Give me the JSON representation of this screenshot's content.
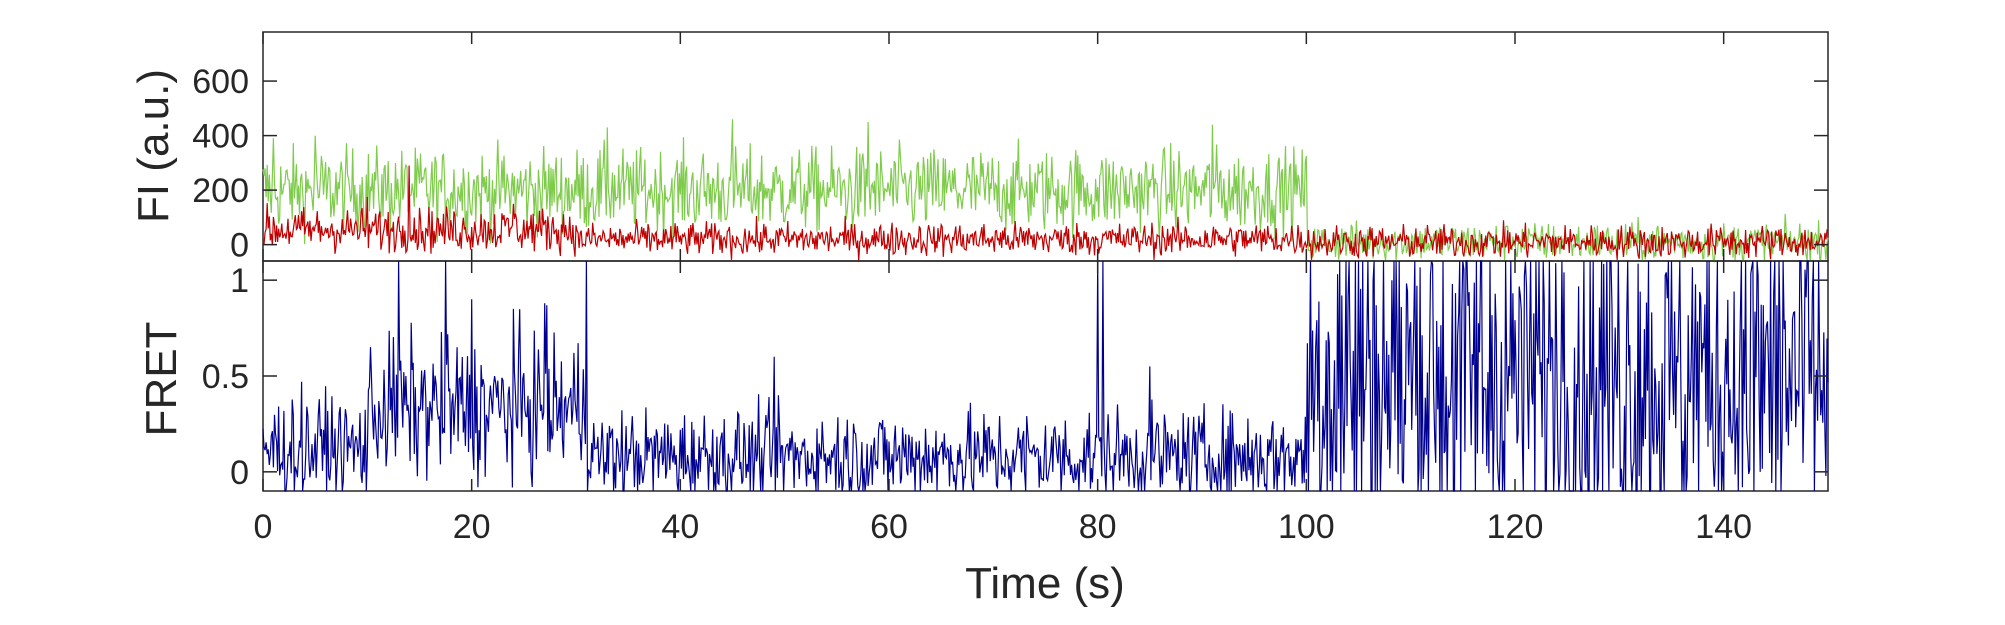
{
  "chart_data": [
    {
      "type": "line",
      "ylabel": "FI (a.u.)",
      "xlim": [
        0,
        150
      ],
      "ylim": [
        -60,
        780
      ],
      "yticks": [
        0,
        200,
        400,
        600
      ],
      "ytick_labels": [
        "0",
        "200",
        "400",
        "600"
      ],
      "grid": false,
      "series": [
        {
          "color": "#7fcc4c",
          "segments": [
            {
              "x": [
                0,
                100
              ],
              "mean": 200,
              "noise": 75
            },
            {
              "x": [
                100,
                150
              ],
              "mean": 10,
              "noise": 35
            }
          ],
          "peaks": [
            [
              1,
              390
            ],
            [
              5,
              400
            ],
            [
              33,
              430
            ],
            [
              45,
              460
            ],
            [
              58,
              450
            ],
            [
              91,
              440
            ]
          ]
        },
        {
          "color": "#c00000",
          "segments": [
            {
              "x": [
                0,
                30
              ],
              "mean": 55,
              "noise": 40
            },
            {
              "x": [
                30,
                100
              ],
              "mean": 20,
              "noise": 30
            },
            {
              "x": [
                100,
                150
              ],
              "mean": 10,
              "noise": 30
            }
          ],
          "peaks": [
            [
              14,
              290
            ],
            [
              10,
              175
            ],
            [
              24,
              150
            ]
          ]
        }
      ]
    },
    {
      "type": "line",
      "xlabel": "Time (s)",
      "ylabel": "FRET",
      "xlim": [
        0,
        150
      ],
      "ylim": [
        -0.1,
        1.1
      ],
      "yticks": [
        0,
        0.5,
        1
      ],
      "ytick_labels": [
        "0",
        "0.5",
        "1"
      ],
      "xticks": [
        0,
        20,
        40,
        60,
        80,
        100,
        120,
        140
      ],
      "xtick_labels": [
        "0",
        "20",
        "40",
        "60",
        "80",
        "100",
        "120",
        "140"
      ],
      "grid": false,
      "series": [
        {
          "color": "#000090",
          "segments": [
            {
              "x": [
                0,
                10
              ],
              "mean": 0.12,
              "noise": 0.14
            },
            {
              "x": [
                10,
                31
              ],
              "mean": 0.33,
              "noise": 0.18
            },
            {
              "x": [
                31,
                100
              ],
              "mean": 0.08,
              "noise": 0.12
            },
            {
              "x": [
                100,
                150
              ],
              "mean": 0.5,
              "noise": 0.55
            }
          ],
          "peaks": [
            [
              13,
              1.1
            ],
            [
              17.5,
              1.1
            ],
            [
              31,
              1.1
            ],
            [
              80,
              1.1
            ],
            [
              80.5,
              1.1
            ],
            [
              85,
              0.55
            ],
            [
              49,
              0.6
            ],
            [
              24,
              0.85
            ],
            [
              27,
              0.88
            ],
            [
              20,
              0.9
            ]
          ]
        }
      ]
    }
  ]
}
